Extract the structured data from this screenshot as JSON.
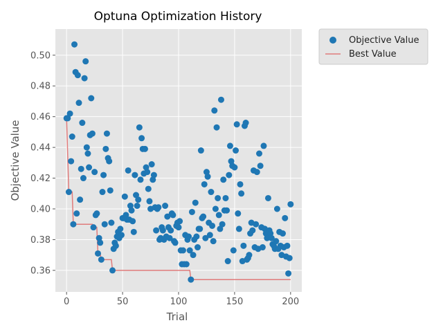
{
  "chart_data": {
    "type": "scatter",
    "title": "Optuna Optimization History",
    "xlabel": "Trial",
    "ylabel": "Objective Value",
    "xlim": [
      -10,
      210
    ],
    "ylim": [
      0.346,
      0.517
    ],
    "xticks": [
      0,
      50,
      100,
      150,
      200
    ],
    "yticks": [
      0.36,
      0.38,
      0.4,
      0.42,
      0.44,
      0.46,
      0.48,
      0.5
    ],
    "ytick_labels": [
      "0.36",
      "0.38",
      "0.40",
      "0.42",
      "0.44",
      "0.46",
      "0.48",
      "0.50"
    ],
    "grid": true,
    "legend_position": "outside-top-right",
    "series": [
      {
        "name": "Objective Value",
        "kind": "scatter",
        "color": "#1f77b4",
        "points": [
          [
            0,
            0.459
          ],
          [
            1,
            0.459
          ],
          [
            2,
            0.411
          ],
          [
            3,
            0.462
          ],
          [
            4,
            0.431
          ],
          [
            5,
            0.447
          ],
          [
            6,
            0.39
          ],
          [
            7,
            0.507
          ],
          [
            8,
            0.489
          ],
          [
            9,
            0.397
          ],
          [
            10,
            0.487
          ],
          [
            11,
            0.469
          ],
          [
            12,
            0.406
          ],
          [
            13,
            0.426
          ],
          [
            14,
            0.456
          ],
          [
            15,
            0.42
          ],
          [
            16,
            0.485
          ],
          [
            17,
            0.496
          ],
          [
            18,
            0.44
          ],
          [
            19,
            0.436
          ],
          [
            20,
            0.427
          ],
          [
            21,
            0.448
          ],
          [
            22,
            0.472
          ],
          [
            23,
            0.449
          ],
          [
            24,
            0.388
          ],
          [
            25,
            0.424
          ],
          [
            26,
            0.396
          ],
          [
            27,
            0.397
          ],
          [
            28,
            0.371
          ],
          [
            29,
            0.381
          ],
          [
            30,
            0.378
          ],
          [
            31,
            0.367
          ],
          [
            32,
            0.411
          ],
          [
            33,
            0.422
          ],
          [
            34,
            0.39
          ],
          [
            35,
            0.439
          ],
          [
            36,
            0.449
          ],
          [
            37,
            0.433
          ],
          [
            38,
            0.431
          ],
          [
            39,
            0.412
          ],
          [
            40,
            0.391
          ],
          [
            41,
            0.36
          ],
          [
            42,
            0.374
          ],
          [
            43,
            0.378
          ],
          [
            44,
            0.376
          ],
          [
            45,
            0.382
          ],
          [
            46,
            0.385
          ],
          [
            47,
            0.381
          ],
          [
            48,
            0.387
          ],
          [
            49,
            0.383
          ],
          [
            50,
            0.394
          ],
          [
            51,
            0.394
          ],
          [
            52,
            0.408
          ],
          [
            53,
            0.396
          ],
          [
            54,
            0.393
          ],
          [
            55,
            0.425
          ],
          [
            56,
            0.393
          ],
          [
            57,
            0.402
          ],
          [
            58,
            0.399
          ],
          [
            59,
            0.392
          ],
          [
            60,
            0.385
          ],
          [
            61,
            0.422
          ],
          [
            62,
            0.409
          ],
          [
            63,
            0.402
          ],
          [
            64,
            0.406
          ],
          [
            65,
            0.453
          ],
          [
            66,
            0.419
          ],
          [
            67,
            0.446
          ],
          [
            68,
            0.439
          ],
          [
            69,
            0.423
          ],
          [
            70,
            0.439
          ],
          [
            71,
            0.427
          ],
          [
            72,
            0.424
          ],
          [
            73,
            0.413
          ],
          [
            74,
            0.405
          ],
          [
            75,
            0.4
          ],
          [
            76,
            0.429
          ],
          [
            77,
            0.419
          ],
          [
            78,
            0.422
          ],
          [
            79,
            0.401
          ],
          [
            80,
            0.386
          ],
          [
            81,
            0.4
          ],
          [
            82,
            0.401
          ],
          [
            83,
            0.38
          ],
          [
            84,
            0.381
          ],
          [
            85,
            0.388
          ],
          [
            86,
            0.386
          ],
          [
            87,
            0.38
          ],
          [
            88,
            0.402
          ],
          [
            89,
            0.382
          ],
          [
            90,
            0.395
          ],
          [
            91,
            0.388
          ],
          [
            92,
            0.381
          ],
          [
            93,
            0.386
          ],
          [
            94,
            0.397
          ],
          [
            95,
            0.396
          ],
          [
            96,
            0.379
          ],
          [
            97,
            0.378
          ],
          [
            98,
            0.389
          ],
          [
            99,
            0.391
          ],
          [
            100,
            0.388
          ],
          [
            101,
            0.392
          ],
          [
            102,
            0.373
          ],
          [
            103,
            0.364
          ],
          [
            104,
            0.373
          ],
          [
            105,
            0.364
          ],
          [
            106,
            0.383
          ],
          [
            107,
            0.364
          ],
          [
            108,
            0.38
          ],
          [
            109,
            0.382
          ],
          [
            110,
            0.373
          ],
          [
            111,
            0.354
          ],
          [
            112,
            0.398
          ],
          [
            113,
            0.37
          ],
          [
            114,
            0.38
          ],
          [
            115,
            0.404
          ],
          [
            116,
            0.382
          ],
          [
            117,
            0.375
          ],
          [
            118,
            0.387
          ],
          [
            119,
            0.387
          ],
          [
            120,
            0.438
          ],
          [
            121,
            0.394
          ],
          [
            122,
            0.395
          ],
          [
            123,
            0.416
          ],
          [
            124,
            0.381
          ],
          [
            125,
            0.424
          ],
          [
            126,
            0.421
          ],
          [
            127,
            0.391
          ],
          [
            128,
            0.383
          ],
          [
            129,
            0.411
          ],
          [
            130,
            0.389
          ],
          [
            131,
            0.379
          ],
          [
            132,
            0.464
          ],
          [
            133,
            0.4
          ],
          [
            134,
            0.453
          ],
          [
            135,
            0.407
          ],
          [
            136,
            0.396
          ],
          [
            137,
            0.387
          ],
          [
            138,
            0.471
          ],
          [
            139,
            0.39
          ],
          [
            140,
            0.419
          ],
          [
            141,
            0.399
          ],
          [
            142,
            0.407
          ],
          [
            143,
            0.399
          ],
          [
            144,
            0.366
          ],
          [
            145,
            0.422
          ],
          [
            146,
            0.441
          ],
          [
            147,
            0.431
          ],
          [
            148,
            0.428
          ],
          [
            149,
            0.373
          ],
          [
            150,
            0.427
          ],
          [
            151,
            0.438
          ],
          [
            152,
            0.455
          ],
          [
            153,
            0.397
          ],
          [
            154,
            0.387
          ],
          [
            155,
            0.416
          ],
          [
            156,
            0.41
          ],
          [
            157,
            0.366
          ],
          [
            158,
            0.376
          ],
          [
            159,
            0.454
          ],
          [
            160,
            0.456
          ],
          [
            161,
            0.367
          ],
          [
            162,
            0.368
          ],
          [
            163,
            0.37
          ],
          [
            164,
            0.384
          ],
          [
            165,
            0.391
          ],
          [
            166,
            0.386
          ],
          [
            167,
            0.425
          ],
          [
            168,
            0.375
          ],
          [
            169,
            0.39
          ],
          [
            170,
            0.424
          ],
          [
            171,
            0.374
          ],
          [
            172,
            0.436
          ],
          [
            173,
            0.428
          ],
          [
            174,
            0.388
          ],
          [
            175,
            0.375
          ],
          [
            176,
            0.441
          ],
          [
            177,
            0.387
          ],
          [
            178,
            0.384
          ],
          [
            179,
            0.381
          ],
          [
            180,
            0.407
          ],
          [
            181,
            0.386
          ],
          [
            182,
            0.384
          ],
          [
            183,
            0.381
          ],
          [
            184,
            0.377
          ],
          [
            185,
            0.376
          ],
          [
            186,
            0.374
          ],
          [
            187,
            0.379
          ],
          [
            188,
            0.4
          ],
          [
            189,
            0.374
          ],
          [
            190,
            0.385
          ],
          [
            191,
            0.376
          ],
          [
            192,
            0.37
          ],
          [
            193,
            0.384
          ],
          [
            194,
            0.375
          ],
          [
            195,
            0.394
          ],
          [
            196,
            0.369
          ],
          [
            197,
            0.376
          ],
          [
            198,
            0.358
          ],
          [
            199,
            0.368
          ],
          [
            200,
            0.403
          ]
        ]
      },
      {
        "name": "Best Value",
        "kind": "step-line",
        "color": "#e07b7b",
        "points": [
          [
            0,
            0.459
          ],
          [
            2,
            0.411
          ],
          [
            5,
            0.411
          ],
          [
            6,
            0.39
          ],
          [
            23,
            0.39
          ],
          [
            24,
            0.388
          ],
          [
            27,
            0.388
          ],
          [
            28,
            0.371
          ],
          [
            30,
            0.371
          ],
          [
            31,
            0.367
          ],
          [
            40,
            0.367
          ],
          [
            41,
            0.36
          ],
          [
            110,
            0.36
          ],
          [
            111,
            0.354
          ],
          [
            200,
            0.354
          ]
        ]
      }
    ]
  }
}
